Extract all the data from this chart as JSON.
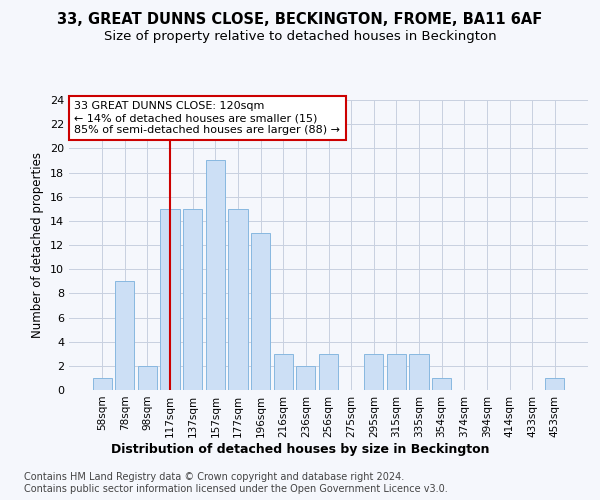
{
  "title1": "33, GREAT DUNNS CLOSE, BECKINGTON, FROME, BA11 6AF",
  "title2": "Size of property relative to detached houses in Beckington",
  "xlabel": "Distribution of detached houses by size in Beckington",
  "ylabel": "Number of detached properties",
  "categories": [
    "58sqm",
    "78sqm",
    "98sqm",
    "117sqm",
    "137sqm",
    "157sqm",
    "177sqm",
    "196sqm",
    "216sqm",
    "236sqm",
    "256sqm",
    "275sqm",
    "295sqm",
    "315sqm",
    "335sqm",
    "354sqm",
    "374sqm",
    "394sqm",
    "414sqm",
    "433sqm",
    "453sqm"
  ],
  "values": [
    1,
    9,
    2,
    15,
    15,
    19,
    15,
    13,
    3,
    2,
    3,
    0,
    3,
    3,
    3,
    1,
    0,
    0,
    0,
    0,
    1
  ],
  "bar_color": "#ccdff5",
  "bar_edge_color": "#88b8e0",
  "annotation_text": "33 GREAT DUNNS CLOSE: 120sqm\n← 14% of detached houses are smaller (15)\n85% of semi-detached houses are larger (88) →",
  "annotation_box_color": "white",
  "annotation_box_edge_color": "#cc0000",
  "vline_color": "#cc0000",
  "vline_x": 3,
  "ylim": [
    0,
    24
  ],
  "yticks": [
    0,
    2,
    4,
    6,
    8,
    10,
    12,
    14,
    16,
    18,
    20,
    22,
    24
  ],
  "footer1": "Contains HM Land Registry data © Crown copyright and database right 2024.",
  "footer2": "Contains public sector information licensed under the Open Government Licence v3.0.",
  "bg_color": "#f5f7fc",
  "plot_bg_color": "#f5f7fc",
  "grid_color": "#c8d0e0"
}
